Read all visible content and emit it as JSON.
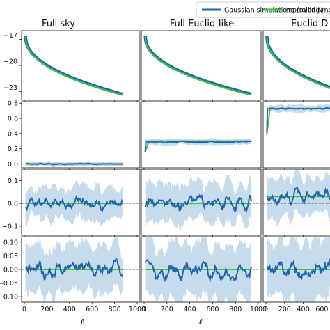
{
  "legend": {
    "entries": [
      {
        "label": "Gaussian simulations (rolling mean + std. dev.)",
        "color": "#2166ac"
      },
      {
        "label": "Improved N",
        "color": "#3cc43c"
      }
    ]
  },
  "colors": {
    "sim": "#2166ac",
    "band": "#bcd6ea",
    "model": "#3cc43c",
    "zero": "#555555"
  },
  "chart_data": {
    "type": "line",
    "columns": [
      "Full sky",
      "Full Euclid-like",
      "Euclid D"
    ],
    "xlabel": "ℓ",
    "xticks": [
      "0",
      "200",
      "400",
      "600",
      "800",
      "1000"
    ],
    "xlim": [
      0,
      1000
    ],
    "rows": [
      {
        "scale": "log",
        "ytick_labels": [
          "−17",
          "−20",
          "−23"
        ],
        "ylim_log10": [
          -24,
          -16
        ]
      },
      {
        "scale": "linear",
        "ytick_labels": [
          "0.8",
          "0.6",
          "0.4",
          "0.2",
          "0.0"
        ],
        "yticks": [
          0.8,
          0.6,
          0.4,
          0.2,
          0.0
        ],
        "ylim": [
          -0.05,
          0.82
        ]
      },
      {
        "scale": "linear",
        "ytick_labels": [
          "0.1",
          "0.0",
          "−0.1"
        ],
        "yticks": [
          0.1,
          0.0,
          -0.1
        ],
        "ylim": [
          -0.14,
          0.15
        ]
      },
      {
        "scale": "linear",
        "ytick_labels": [
          "0.10",
          "0.05",
          "0.00",
          "−0.05",
          "−0.10"
        ],
        "yticks": [
          0.1,
          0.05,
          0.0,
          -0.05,
          -0.1
        ],
        "ylim": [
          -0.12,
          0.12
        ]
      }
    ],
    "series": [
      {
        "name": "Gaussian simulations (rolling mean + std. dev.)",
        "panels": [
          [
            {
              "log10_amp": [
                -16.6,
                -23.3
              ]
            },
            {
              "mean": 0.0,
              "sd": 0.025
            },
            {
              "mean": 0.0,
              "sd": 0.04
            },
            {
              "mean": 0.0,
              "sd": 0.05
            }
          ],
          [
            {
              "log10_amp": [
                -16.6,
                -23.3
              ]
            },
            {
              "mean": 0.29,
              "sd": 0.035
            },
            {
              "mean": 0.0,
              "sd": 0.045
            },
            {
              "mean": 0.0,
              "sd": 0.055
            }
          ],
          [
            {
              "log10_amp": [
                -16.6,
                -23.3
              ]
            },
            {
              "mean": 0.73,
              "sd": 0.04
            },
            {
              "mean": 0.03,
              "sd": 0.05
            },
            {
              "mean": 0.0,
              "sd": 0.06
            }
          ]
        ]
      },
      {
        "name": "Improved N",
        "panels": [
          [
            {
              "log10_amp": [
                -16.6,
                -23.3
              ]
            },
            {
              "value": 0.0
            },
            {
              "value": 0.0
            },
            {
              "value": 0.0
            }
          ],
          [
            {
              "log10_amp": [
                -16.6,
                -23.3
              ]
            },
            {
              "value": 0.3
            },
            {
              "value": 0.0
            },
            {
              "value": 0.0
            }
          ],
          [
            {
              "log10_amp": [
                -16.6,
                -23.3
              ]
            },
            {
              "value": 0.73
            },
            {
              "value": 0.03
            },
            {
              "value": 0.0
            }
          ]
        ]
      }
    ],
    "grid": false,
    "legend_position": "top"
  }
}
